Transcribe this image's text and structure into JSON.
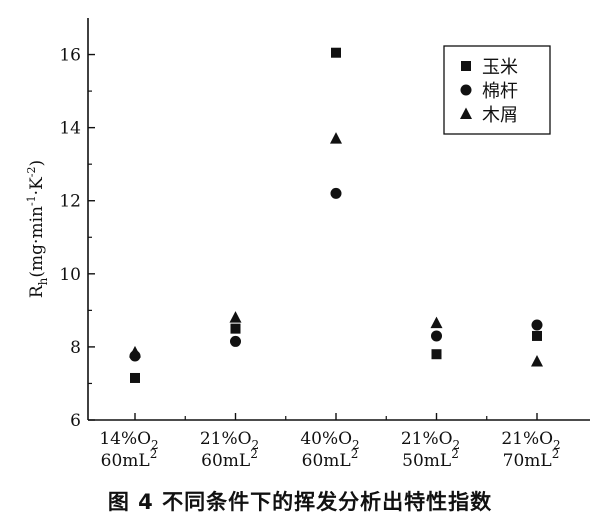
{
  "chart_data": {
    "type": "scatter",
    "ylabel": "R_h(mg·min⁻¹·K⁻²)",
    "ylim": [
      6,
      17
    ],
    "yticks": [
      6,
      8,
      10,
      12,
      14,
      16
    ],
    "categories": [
      {
        "line1": "14%O",
        "sub": "2",
        "line2": "60mL",
        "sup": "2"
      },
      {
        "line1": "21%O",
        "sub": "2",
        "line2": "60mL",
        "sup": "2"
      },
      {
        "line1": "40%O",
        "sub": "2",
        "line2": "60mL",
        "sup": "2"
      },
      {
        "line1": "21%O",
        "sub": "2",
        "line2": "50mL",
        "sup": "2"
      },
      {
        "line1": "21%O",
        "sub": "2",
        "line2": "70mL",
        "sup": "2"
      }
    ],
    "series": [
      {
        "name": "玉米",
        "marker": "square",
        "values": [
          7.15,
          8.5,
          16.05,
          7.8,
          8.3
        ]
      },
      {
        "name": "棉杆",
        "marker": "circle",
        "values": [
          7.75,
          8.15,
          12.2,
          8.3,
          8.6
        ]
      },
      {
        "name": "木屑",
        "marker": "triangle",
        "values": [
          7.85,
          8.8,
          13.7,
          8.65,
          7.6
        ]
      }
    ],
    "legend_position": "top-right",
    "grid": false
  },
  "caption": "图 4   不同条件下的挥发分析出特性指数"
}
